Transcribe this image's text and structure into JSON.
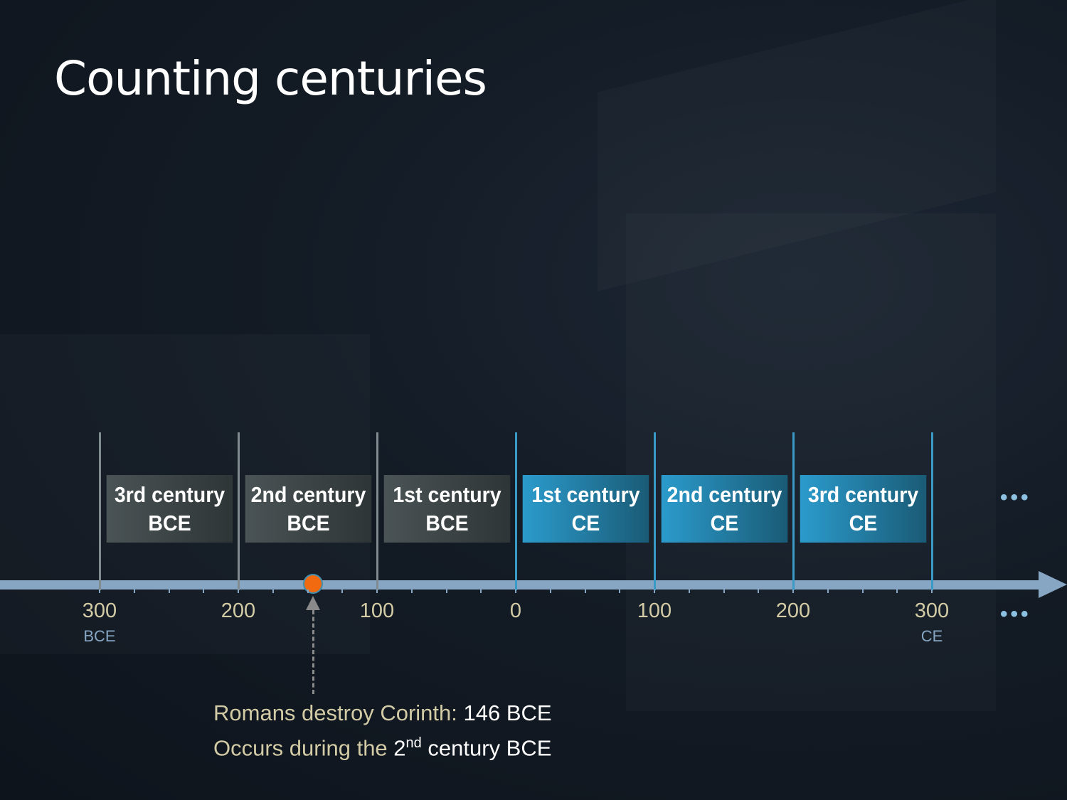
{
  "title": "Counting centuries",
  "colors": {
    "bce_box": "#4a5355",
    "ce_box": "#2b9bcc",
    "axis": "#87a6c3",
    "event": "#f26a10"
  },
  "centuries": [
    {
      "line1": "3rd century",
      "line2": "BCE",
      "start": -300,
      "era": "bce"
    },
    {
      "line1": "2nd century",
      "line2": "BCE",
      "start": -200,
      "era": "bce"
    },
    {
      "line1": "1st century",
      "line2": "BCE",
      "start": -100,
      "era": "bce"
    },
    {
      "line1": "1st century",
      "line2": "CE",
      "start": 0,
      "era": "ce"
    },
    {
      "line1": "2nd century",
      "line2": "CE",
      "start": 100,
      "era": "ce"
    },
    {
      "line1": "3rd century",
      "line2": "CE",
      "start": 200,
      "era": "ce"
    }
  ],
  "axis": {
    "ticks": [
      -300,
      -200,
      -100,
      0,
      100,
      200,
      300
    ],
    "labels": [
      "300",
      "200",
      "100",
      "0",
      "100",
      "200",
      "300"
    ],
    "minor_step": 25,
    "left_era": "BCE",
    "right_era": "CE",
    "ellipsis": "•••"
  },
  "event": {
    "year": -146,
    "caption_prefix": "Romans destroy Corinth: ",
    "caption_value": "146 BCE",
    "line2_prefix": "Occurs during the ",
    "line2_num": "2",
    "line2_sup": "nd",
    "line2_suffix": " century BCE"
  }
}
